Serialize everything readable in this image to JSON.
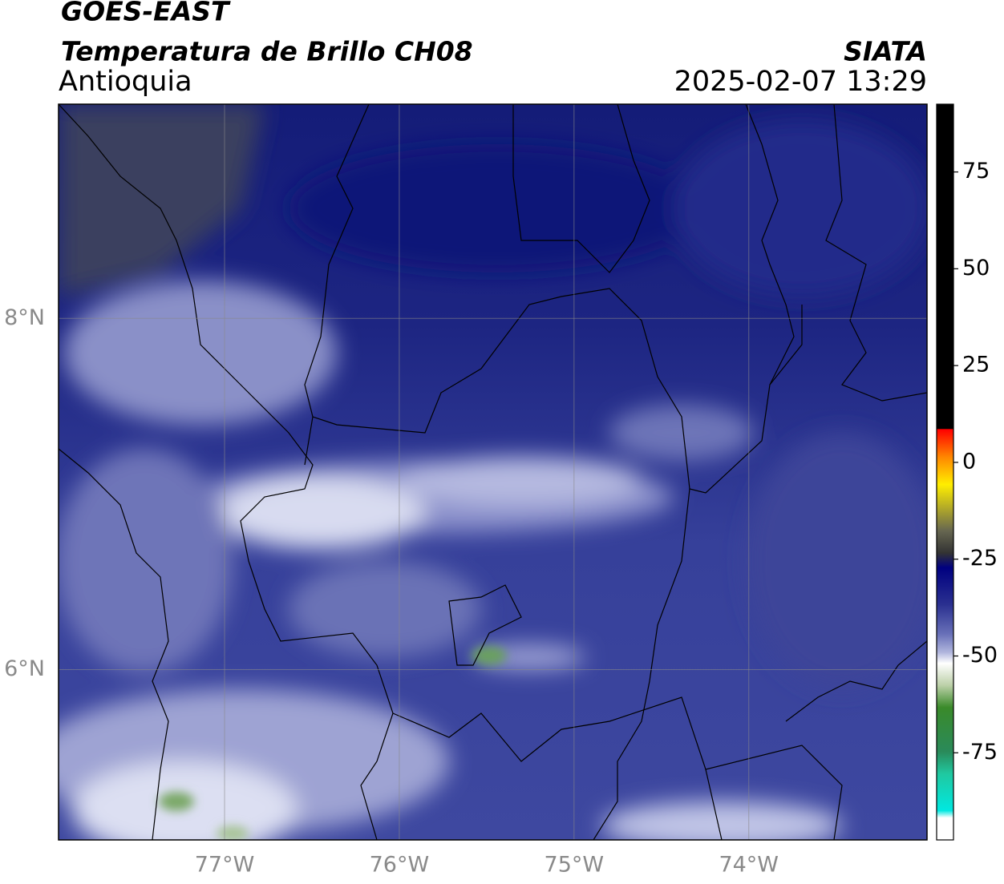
{
  "header": {
    "title": "GOES-EAST",
    "subtitle": "Temperatura de Brillo CH08",
    "region": "Antioquia",
    "source": "SIATA",
    "timestamp": "2025-02-07 13:29"
  },
  "map": {
    "xlim": [
      -77.95,
      -72.98
    ],
    "ylim": [
      5.03,
      9.22
    ],
    "xticks": [
      {
        "value": -77,
        "label": "77°W"
      },
      {
        "value": -76,
        "label": "76°W"
      },
      {
        "value": -75,
        "label": "75°W"
      },
      {
        "value": -74,
        "label": "74°W"
      }
    ],
    "yticks": [
      {
        "value": 6,
        "label": "6°N"
      },
      {
        "value": 8,
        "label": "8°N"
      }
    ],
    "grid": true
  },
  "colorbar": {
    "lim": [
      -97.5,
      92.5
    ],
    "ticks": [
      75,
      50,
      25,
      0,
      -25,
      -50,
      -75
    ]
  }
}
